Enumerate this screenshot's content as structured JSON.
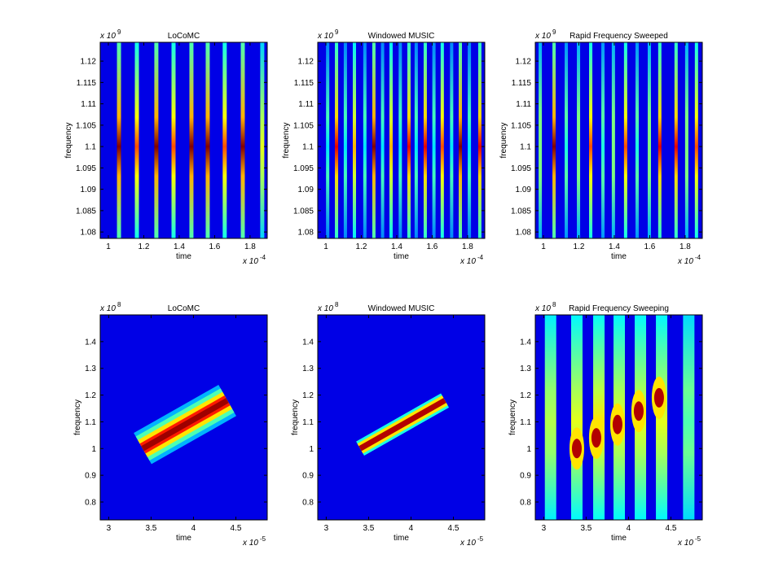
{
  "chart_data": [
    {
      "type": "stripes",
      "title": "LoCoMC",
      "xlabel": "time",
      "ylabel": "frequency",
      "x_scale": {
        "base": "x 10",
        "exp": "-4"
      },
      "y_scale": {
        "base": "x 10",
        "exp": "9"
      },
      "xlim": [
        0.954,
        1.897
      ],
      "xticks": [
        1,
        1.2,
        1.4,
        1.6,
        1.8
      ],
      "ylim": [
        1.0785,
        1.1244
      ],
      "yticks": [
        1.08,
        1.085,
        1.09,
        1.095,
        1.1,
        1.105,
        1.11,
        1.115,
        1.12
      ],
      "center": 1.1,
      "stripes": {
        "x": [
          1.06,
          1.161,
          1.271,
          1.368,
          1.469,
          1.561,
          1.657,
          1.759,
          1.869
        ],
        "peak": [
          1,
          0.8,
          1,
          0.8,
          1,
          1,
          0.8,
          1,
          0.6
        ]
      }
    },
    {
      "type": "stripes",
      "title": "Windowed MUSIC",
      "xlabel": "time",
      "ylabel": "frequency",
      "x_scale": {
        "base": "x 10",
        "exp": "-4"
      },
      "y_scale": {
        "base": "x 10",
        "exp": "9"
      },
      "xlim": [
        0.954,
        1.897
      ],
      "xticks": [
        1,
        1.2,
        1.4,
        1.6,
        1.8
      ],
      "ylim": [
        1.0785,
        1.1244
      ],
      "yticks": [
        1.08,
        1.085,
        1.09,
        1.095,
        1.1,
        1.105,
        1.11,
        1.115,
        1.12
      ],
      "center": 1.1,
      "stripes": {
        "x": [
          1.01,
          1.06,
          1.11,
          1.161,
          1.22,
          1.271,
          1.32,
          1.368,
          1.42,
          1.469,
          1.51,
          1.561,
          1.61,
          1.657,
          1.71,
          1.759,
          1.81,
          1.869
        ],
        "peak": [
          0.35,
          0.9,
          0.35,
          0.7,
          0.35,
          1,
          0.35,
          0.7,
          0.35,
          0.9,
          0.35,
          0.9,
          0.35,
          0.8,
          0.35,
          1,
          0.35,
          0.9
        ]
      }
    },
    {
      "type": "stripes",
      "title": "Rapid Frequency Sweeped",
      "xlabel": "time",
      "ylabel": "frequency",
      "x_scale": {
        "base": "x 10",
        "exp": "-4"
      },
      "y_scale": {
        "base": "x 10",
        "exp": "9"
      },
      "xlim": [
        0.954,
        1.897
      ],
      "xticks": [
        1,
        1.2,
        1.4,
        1.6,
        1.8
      ],
      "ylim": [
        1.0785,
        1.1244
      ],
      "yticks": [
        1.08,
        1.085,
        1.09,
        1.095,
        1.1,
        1.105,
        1.11,
        1.115,
        1.12
      ],
      "center": 1.1,
      "stripes": {
        "x": [
          0.982,
          1.06,
          1.129,
          1.198,
          1.267,
          1.336,
          1.395,
          1.464,
          1.529,
          1.598,
          1.657,
          1.749,
          1.809,
          1.864
        ],
        "peak": [
          0.5,
          1,
          0.4,
          0.5,
          0.8,
          0.4,
          0.5,
          0.8,
          0.4,
          0.5,
          0.9,
          0.9,
          0.5,
          0.8
        ]
      }
    },
    {
      "type": "track",
      "title": "LoCoMC",
      "xlabel": "time",
      "ylabel": "frequency",
      "x_scale": {
        "base": "x 10",
        "exp": "-5"
      },
      "y_scale": {
        "base": "x 10",
        "exp": "8"
      },
      "xlim": [
        2.9,
        4.87
      ],
      "xticks": [
        3,
        3.5,
        4,
        4.5
      ],
      "ylim": [
        0.733,
        1.5
      ],
      "yticks": [
        0.8,
        0.9,
        1,
        1.1,
        1.2,
        1.3,
        1.4
      ],
      "track": {
        "x": [
          3.4,
          4.4
        ],
        "y": [
          1.0,
          1.18
        ]
      }
    },
    {
      "type": "track",
      "title": "Windowed MUSIC",
      "xlabel": "time",
      "ylabel": "frequency",
      "x_scale": {
        "base": "x 10",
        "exp": "-5"
      },
      "y_scale": {
        "base": "x 10",
        "exp": "8"
      },
      "xlim": [
        2.9,
        4.87
      ],
      "xticks": [
        3,
        3.5,
        4,
        4.5
      ],
      "ylim": [
        0.733,
        1.5
      ],
      "yticks": [
        0.8,
        0.9,
        1,
        1.1,
        1.2,
        1.3,
        1.4
      ],
      "track": {
        "x": [
          3.4,
          4.4
        ],
        "y": [
          1.0,
          1.18
        ]
      }
    },
    {
      "type": "blobs",
      "title": "Rapid Frequency Sweeping",
      "xlabel": "time",
      "ylabel": "frequency",
      "x_scale": {
        "base": "x 10",
        "exp": "-5"
      },
      "y_scale": {
        "base": "x 10",
        "exp": "8"
      },
      "xlim": [
        2.9,
        4.87
      ],
      "xticks": [
        3,
        3.5,
        4,
        4.5
      ],
      "ylim": [
        0.733,
        1.5
      ],
      "yticks": [
        0.8,
        0.9,
        1,
        1.1,
        1.2,
        1.3,
        1.4
      ],
      "center": 1.1,
      "stripes": {
        "x": [
          3.08,
          3.39,
          3.65,
          3.89,
          4.14,
          4.39,
          4.71
        ],
        "peak": [
          0.55,
          0.6,
          0.65,
          0.6,
          0.6,
          0.6,
          0.45
        ]
      },
      "blobs": {
        "x": [
          3.39,
          3.62,
          3.87,
          4.12,
          4.36
        ],
        "y": [
          1.0,
          1.04,
          1.09,
          1.14,
          1.19
        ]
      }
    }
  ]
}
